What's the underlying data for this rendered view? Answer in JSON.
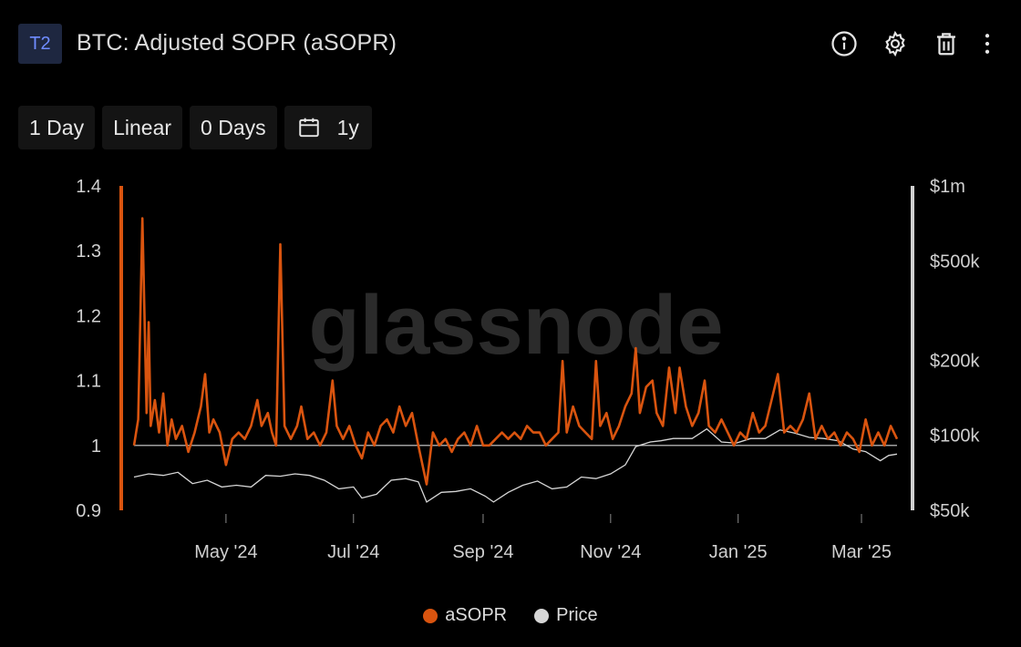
{
  "header": {
    "badge": "T2",
    "title": "BTC: Adjusted SOPR (aSOPR)",
    "icons": [
      "info-icon",
      "gear-icon",
      "trash-icon",
      "more-vertical-icon"
    ]
  },
  "toolbar": {
    "resolution": "1 Day",
    "scale": "Linear",
    "sma": "0 Days",
    "range": "1y",
    "range_icon": "calendar-icon"
  },
  "watermark": "glassnode",
  "colors": {
    "asopr": "#d9540f",
    "price": "#d6d6d6",
    "axis": "#cfcfcf"
  },
  "chart_data": {
    "type": "line",
    "x_range": [
      "2024-03-18",
      "2025-03-18"
    ],
    "x_ticks": [
      {
        "date": "2024-05-01",
        "label": "May '24"
      },
      {
        "date": "2024-07-01",
        "label": "Jul '24"
      },
      {
        "date": "2024-09-01",
        "label": "Sep '24"
      },
      {
        "date": "2024-11-01",
        "label": "Nov '24"
      },
      {
        "date": "2025-01-01",
        "label": "Jan '25"
      },
      {
        "date": "2025-03-01",
        "label": "Mar '25"
      }
    ],
    "y_left": {
      "range": [
        0.9,
        1.4
      ],
      "ticks": [
        {
          "v": 1.4,
          "label": "1.4"
        },
        {
          "v": 1.3,
          "label": "1.3"
        },
        {
          "v": 1.2,
          "label": "1.2"
        },
        {
          "v": 1.1,
          "label": "1.1"
        },
        {
          "v": 1,
          "label": "1"
        },
        {
          "v": 0.9,
          "label": "0.9"
        }
      ]
    },
    "y_right": {
      "scale": "log",
      "range": [
        50000,
        1000000
      ],
      "ticks": [
        {
          "v": 1000000,
          "label": "$1m"
        },
        {
          "v": 500000,
          "label": "$500k"
        },
        {
          "v": 200000,
          "label": "$200k"
        },
        {
          "v": 100000,
          "label": "$100k"
        },
        {
          "v": 50000,
          "label": "$50k"
        }
      ]
    },
    "reference_line": 1,
    "legend_position": "bottom-center",
    "series": [
      {
        "name": "aSOPR",
        "axis": "left",
        "points": [
          [
            "2024-03-18",
            1.0
          ],
          [
            "2024-03-20",
            1.04
          ],
          [
            "2024-03-22",
            1.35
          ],
          [
            "2024-03-24",
            1.05
          ],
          [
            "2024-03-25",
            1.19
          ],
          [
            "2024-03-26",
            1.03
          ],
          [
            "2024-03-28",
            1.07
          ],
          [
            "2024-03-30",
            1.02
          ],
          [
            "2024-04-01",
            1.08
          ],
          [
            "2024-04-03",
            1.0
          ],
          [
            "2024-04-05",
            1.04
          ],
          [
            "2024-04-07",
            1.01
          ],
          [
            "2024-04-10",
            1.03
          ],
          [
            "2024-04-13",
            0.99
          ],
          [
            "2024-04-16",
            1.02
          ],
          [
            "2024-04-19",
            1.06
          ],
          [
            "2024-04-21",
            1.11
          ],
          [
            "2024-04-23",
            1.02
          ],
          [
            "2024-04-25",
            1.04
          ],
          [
            "2024-04-28",
            1.02
          ],
          [
            "2024-05-01",
            0.97
          ],
          [
            "2024-05-04",
            1.01
          ],
          [
            "2024-05-07",
            1.02
          ],
          [
            "2024-05-10",
            1.01
          ],
          [
            "2024-05-13",
            1.03
          ],
          [
            "2024-05-16",
            1.07
          ],
          [
            "2024-05-18",
            1.03
          ],
          [
            "2024-05-21",
            1.05
          ],
          [
            "2024-05-23",
            1.02
          ],
          [
            "2024-05-25",
            1.0
          ],
          [
            "2024-05-27",
            1.31
          ],
          [
            "2024-05-29",
            1.03
          ],
          [
            "2024-06-01",
            1.01
          ],
          [
            "2024-06-04",
            1.03
          ],
          [
            "2024-06-06",
            1.06
          ],
          [
            "2024-06-09",
            1.01
          ],
          [
            "2024-06-12",
            1.02
          ],
          [
            "2024-06-15",
            1.0
          ],
          [
            "2024-06-18",
            1.02
          ],
          [
            "2024-06-21",
            1.1
          ],
          [
            "2024-06-23",
            1.03
          ],
          [
            "2024-06-26",
            1.01
          ],
          [
            "2024-06-29",
            1.03
          ],
          [
            "2024-07-02",
            1.0
          ],
          [
            "2024-07-05",
            0.98
          ],
          [
            "2024-07-08",
            1.02
          ],
          [
            "2024-07-11",
            1.0
          ],
          [
            "2024-07-14",
            1.03
          ],
          [
            "2024-07-17",
            1.04
          ],
          [
            "2024-07-20",
            1.02
          ],
          [
            "2024-07-23",
            1.06
          ],
          [
            "2024-07-26",
            1.03
          ],
          [
            "2024-07-29",
            1.05
          ],
          [
            "2024-08-01",
            1.0
          ],
          [
            "2024-08-05",
            0.94
          ],
          [
            "2024-08-08",
            1.02
          ],
          [
            "2024-08-11",
            1.0
          ],
          [
            "2024-08-14",
            1.01
          ],
          [
            "2024-08-17",
            0.99
          ],
          [
            "2024-08-20",
            1.01
          ],
          [
            "2024-08-23",
            1.02
          ],
          [
            "2024-08-26",
            1.0
          ],
          [
            "2024-08-29",
            1.03
          ],
          [
            "2024-09-01",
            1.0
          ],
          [
            "2024-09-04",
            1.0
          ],
          [
            "2024-09-07",
            1.01
          ],
          [
            "2024-09-10",
            1.02
          ],
          [
            "2024-09-13",
            1.01
          ],
          [
            "2024-09-16",
            1.02
          ],
          [
            "2024-09-19",
            1.01
          ],
          [
            "2024-09-22",
            1.03
          ],
          [
            "2024-09-25",
            1.02
          ],
          [
            "2024-09-28",
            1.02
          ],
          [
            "2024-10-01",
            1.0
          ],
          [
            "2024-10-04",
            1.01
          ],
          [
            "2024-10-07",
            1.02
          ],
          [
            "2024-10-09",
            1.13
          ],
          [
            "2024-10-11",
            1.02
          ],
          [
            "2024-10-14",
            1.06
          ],
          [
            "2024-10-17",
            1.03
          ],
          [
            "2024-10-20",
            1.02
          ],
          [
            "2024-10-23",
            1.01
          ],
          [
            "2024-10-25",
            1.13
          ],
          [
            "2024-10-27",
            1.03
          ],
          [
            "2024-10-30",
            1.05
          ],
          [
            "2024-11-02",
            1.01
          ],
          [
            "2024-11-05",
            1.03
          ],
          [
            "2024-11-08",
            1.06
          ],
          [
            "2024-11-11",
            1.08
          ],
          [
            "2024-11-13",
            1.15
          ],
          [
            "2024-11-15",
            1.05
          ],
          [
            "2024-11-18",
            1.09
          ],
          [
            "2024-11-21",
            1.1
          ],
          [
            "2024-11-23",
            1.05
          ],
          [
            "2024-11-26",
            1.03
          ],
          [
            "2024-11-29",
            1.12
          ],
          [
            "2024-12-02",
            1.05
          ],
          [
            "2024-12-04",
            1.12
          ],
          [
            "2024-12-07",
            1.06
          ],
          [
            "2024-12-10",
            1.03
          ],
          [
            "2024-12-13",
            1.05
          ],
          [
            "2024-12-16",
            1.1
          ],
          [
            "2024-12-18",
            1.03
          ],
          [
            "2024-12-21",
            1.02
          ],
          [
            "2024-12-24",
            1.04
          ],
          [
            "2024-12-27",
            1.02
          ],
          [
            "2024-12-30",
            1.0
          ],
          [
            "2025-01-02",
            1.02
          ],
          [
            "2025-01-05",
            1.01
          ],
          [
            "2025-01-08",
            1.05
          ],
          [
            "2025-01-11",
            1.02
          ],
          [
            "2025-01-14",
            1.03
          ],
          [
            "2025-01-17",
            1.07
          ],
          [
            "2025-01-20",
            1.11
          ],
          [
            "2025-01-23",
            1.02
          ],
          [
            "2025-01-26",
            1.03
          ],
          [
            "2025-01-29",
            1.02
          ],
          [
            "2025-02-01",
            1.04
          ],
          [
            "2025-02-04",
            1.08
          ],
          [
            "2025-02-07",
            1.01
          ],
          [
            "2025-02-10",
            1.03
          ],
          [
            "2025-02-13",
            1.01
          ],
          [
            "2025-02-16",
            1.02
          ],
          [
            "2025-02-19",
            1.0
          ],
          [
            "2025-02-22",
            1.02
          ],
          [
            "2025-02-25",
            1.01
          ],
          [
            "2025-02-28",
            0.99
          ],
          [
            "2025-03-03",
            1.04
          ],
          [
            "2025-03-06",
            1.0
          ],
          [
            "2025-03-09",
            1.02
          ],
          [
            "2025-03-12",
            1.0
          ],
          [
            "2025-03-15",
            1.03
          ],
          [
            "2025-03-18",
            1.01
          ]
        ]
      },
      {
        "name": "Price",
        "axis": "right",
        "points": [
          [
            "2024-03-18",
            68000
          ],
          [
            "2024-03-25",
            70000
          ],
          [
            "2024-04-01",
            69000
          ],
          [
            "2024-04-08",
            71000
          ],
          [
            "2024-04-15",
            64000
          ],
          [
            "2024-04-22",
            66000
          ],
          [
            "2024-04-29",
            62000
          ],
          [
            "2024-05-06",
            63000
          ],
          [
            "2024-05-13",
            62000
          ],
          [
            "2024-05-20",
            69000
          ],
          [
            "2024-05-27",
            68500
          ],
          [
            "2024-06-03",
            70000
          ],
          [
            "2024-06-10",
            69000
          ],
          [
            "2024-06-17",
            66000
          ],
          [
            "2024-06-24",
            61000
          ],
          [
            "2024-07-01",
            62000
          ],
          [
            "2024-07-05",
            56000
          ],
          [
            "2024-07-12",
            58000
          ],
          [
            "2024-07-19",
            66000
          ],
          [
            "2024-07-26",
            67000
          ],
          [
            "2024-08-01",
            65000
          ],
          [
            "2024-08-05",
            54000
          ],
          [
            "2024-08-12",
            59000
          ],
          [
            "2024-08-19",
            59500
          ],
          [
            "2024-08-26",
            61000
          ],
          [
            "2024-09-02",
            57000
          ],
          [
            "2024-09-06",
            54000
          ],
          [
            "2024-09-13",
            59000
          ],
          [
            "2024-09-20",
            63000
          ],
          [
            "2024-09-27",
            65500
          ],
          [
            "2024-10-04",
            61000
          ],
          [
            "2024-10-11",
            62000
          ],
          [
            "2024-10-18",
            68000
          ],
          [
            "2024-10-25",
            67000
          ],
          [
            "2024-11-01",
            70000
          ],
          [
            "2024-11-08",
            76000
          ],
          [
            "2024-11-13",
            90000
          ],
          [
            "2024-11-20",
            94000
          ],
          [
            "2024-11-25",
            95000
          ],
          [
            "2024-12-01",
            97000
          ],
          [
            "2024-12-10",
            97000
          ],
          [
            "2024-12-17",
            106000
          ],
          [
            "2024-12-24",
            94000
          ],
          [
            "2024-12-31",
            93000
          ],
          [
            "2025-01-07",
            97000
          ],
          [
            "2025-01-14",
            97000
          ],
          [
            "2025-01-21",
            105000
          ],
          [
            "2025-01-28",
            102000
          ],
          [
            "2025-02-04",
            98000
          ],
          [
            "2025-02-11",
            97000
          ],
          [
            "2025-02-18",
            95000
          ],
          [
            "2025-02-25",
            88000
          ],
          [
            "2025-03-03",
            86000
          ],
          [
            "2025-03-10",
            79000
          ],
          [
            "2025-03-14",
            83000
          ],
          [
            "2025-03-18",
            84000
          ]
        ]
      }
    ]
  }
}
